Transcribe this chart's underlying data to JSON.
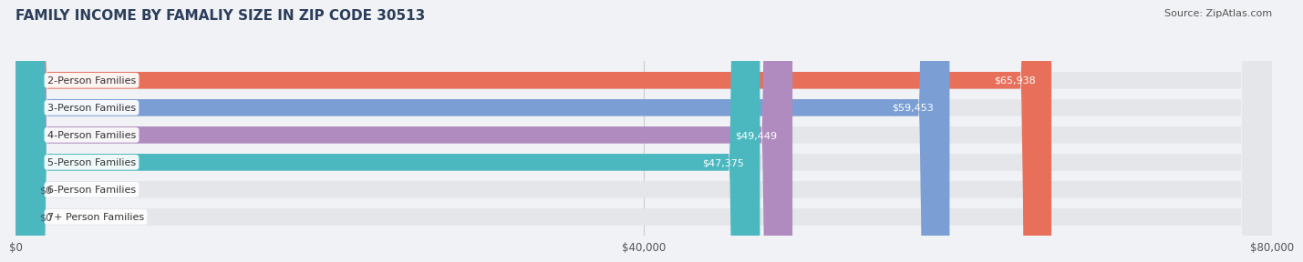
{
  "title": "FAMILY INCOME BY FAMALIY SIZE IN ZIP CODE 30513",
  "source": "Source: ZipAtlas.com",
  "categories": [
    "2-Person Families",
    "3-Person Families",
    "4-Person Families",
    "5-Person Families",
    "6-Person Families",
    "7+ Person Families"
  ],
  "values": [
    65938,
    59453,
    49449,
    47375,
    0,
    0
  ],
  "bar_colors": [
    "#E8705A",
    "#7B9FD4",
    "#B08BBF",
    "#4BB8C0",
    "#A8B8E0",
    "#F0A0B8"
  ],
  "value_labels": [
    "$65,938",
    "$59,453",
    "$49,449",
    "$47,375",
    "$0",
    "$0"
  ],
  "xlim": [
    0,
    80000
  ],
  "xticks": [
    0,
    40000,
    80000
  ],
  "xticklabels": [
    "$0",
    "$40,000",
    "$80,000"
  ],
  "title_fontsize": 11,
  "title_color": "#2C3E5A",
  "bar_height": 0.62,
  "background_color": "#F0F2F5",
  "bar_bg_color": "#E4E6EA",
  "label_fontsize": 8.0,
  "label_color_inside": "#FFFFFF",
  "label_color_outside": "#555555",
  "source_fontsize": 8,
  "source_color": "#555555"
}
